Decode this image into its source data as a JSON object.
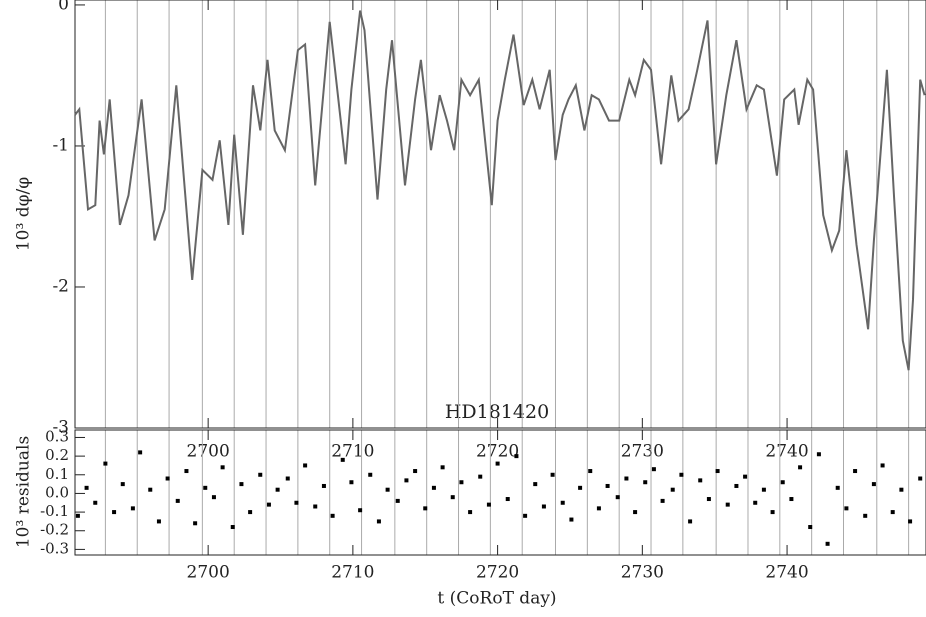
{
  "chart_data": [
    {
      "type": "line",
      "title": "HD181420",
      "ylabel": "10³ dφ/φ",
      "xlim": [
        2690.8,
        2749.6
      ],
      "ylim": [
        -3,
        0.035
      ],
      "xticks": [
        2700,
        2710,
        2720,
        2730,
        2740
      ],
      "yticks": [
        -3,
        -2,
        -1,
        0
      ],
      "vlines": [
        2692.9,
        2695.1,
        2697.3,
        2699.6,
        2701.8,
        2704.0,
        2706.2,
        2708.4,
        2710.6,
        2712.9,
        2715.1,
        2717.3,
        2719.5,
        2721.7,
        2724.0,
        2726.2,
        2728.4,
        2730.6,
        2732.8,
        2735.1,
        2737.3,
        2739.5,
        2741.7,
        2743.9,
        2746.2,
        2748.4
      ],
      "color": "#666666",
      "x": [
        2690.8,
        2691.1,
        2691.7,
        2692.2,
        2692.5,
        2692.8,
        2693.2,
        2693.9,
        2694.5,
        2695.4,
        2696.3,
        2697.0,
        2697.8,
        2698.9,
        2699.6,
        2700.3,
        2700.8,
        2701.4,
        2701.8,
        2702.4,
        2703.1,
        2703.6,
        2704.1,
        2704.6,
        2705.3,
        2706.2,
        2706.7,
        2707.4,
        2708.4,
        2709.5,
        2709.9,
        2710.5,
        2710.8,
        2711.7,
        2712.3,
        2712.7,
        2713.6,
        2714.3,
        2714.7,
        2715.4,
        2716.0,
        2716.5,
        2717.0,
        2717.5,
        2718.1,
        2718.7,
        2719.6,
        2720.0,
        2720.5,
        2721.1,
        2721.8,
        2722.4,
        2722.9,
        2723.6,
        2724.0,
        2724.5,
        2724.9,
        2725.4,
        2726.0,
        2726.5,
        2727.0,
        2727.7,
        2728.4,
        2729.1,
        2729.5,
        2730.1,
        2730.6,
        2731.3,
        2732.0,
        2732.5,
        2733.2,
        2733.8,
        2734.5,
        2735.1,
        2735.8,
        2736.5,
        2737.2,
        2737.9,
        2738.4,
        2739.3,
        2739.8,
        2740.5,
        2740.8,
        2741.4,
        2741.8,
        2742.5,
        2743.1,
        2743.6,
        2744.1,
        2744.8,
        2745.6,
        2746.0,
        2746.9,
        2747.4,
        2748.0,
        2748.4,
        2748.7,
        2749.2,
        2749.5
      ],
      "values": [
        -0.78,
        -0.74,
        -1.45,
        -1.42,
        -0.82,
        -1.06,
        -0.67,
        -1.56,
        -1.35,
        -0.67,
        -1.67,
        -1.45,
        -0.57,
        -1.95,
        -1.17,
        -1.24,
        -0.96,
        -1.56,
        -0.92,
        -1.63,
        -0.57,
        -0.89,
        -0.39,
        -0.89,
        -1.03,
        -0.32,
        -0.28,
        -1.28,
        -0.12,
        -1.13,
        -0.6,
        -0.04,
        -0.18,
        -1.38,
        -0.6,
        -0.25,
        -1.28,
        -0.67,
        -0.39,
        -1.03,
        -0.64,
        -0.82,
        -1.03,
        -0.53,
        -0.64,
        -0.53,
        -1.42,
        -0.82,
        -0.53,
        -0.21,
        -0.71,
        -0.53,
        -0.74,
        -0.46,
        -1.1,
        -0.78,
        -0.67,
        -0.57,
        -0.89,
        -0.64,
        -0.67,
        -0.82,
        -0.82,
        -0.53,
        -0.64,
        -0.39,
        -0.46,
        -1.13,
        -0.5,
        -0.82,
        -0.74,
        -0.46,
        -0.11,
        -1.13,
        -0.64,
        -0.25,
        -0.74,
        -0.57,
        -0.6,
        -1.21,
        -0.67,
        -0.6,
        -0.85,
        -0.53,
        -0.6,
        -1.49,
        -1.74,
        -1.6,
        -1.03,
        -1.7,
        -2.3,
        -1.67,
        -0.46,
        -1.38,
        -2.38,
        -2.59,
        -2.09,
        -0.53,
        -0.64
      ]
    },
    {
      "type": "scatter",
      "ylabel": "10³ residuals",
      "xlabel": "t (CoRoT day)",
      "xlim": [
        2690.8,
        2749.6
      ],
      "ylim": [
        -0.33,
        0.34
      ],
      "xticks": [
        2700,
        2710,
        2720,
        2730,
        2740
      ],
      "yticks": [
        -0.3,
        -0.2,
        -0.1,
        {
          "value": 0,
          "label": "0.0"
        },
        0.1,
        0.2,
        0.3
      ],
      "color": "#000000",
      "x": [
        2691.0,
        2691.6,
        2692.2,
        2692.9,
        2693.5,
        2694.1,
        2694.8,
        2695.3,
        2696.0,
        2696.6,
        2697.2,
        2697.9,
        2698.5,
        2699.1,
        2699.8,
        2700.4,
        2701.0,
        2701.7,
        2702.3,
        2702.9,
        2703.6,
        2704.2,
        2704.8,
        2705.5,
        2706.1,
        2706.7,
        2707.4,
        2708.0,
        2708.6,
        2709.3,
        2709.9,
        2710.5,
        2711.2,
        2711.8,
        2712.4,
        2713.1,
        2713.7,
        2714.3,
        2715.0,
        2715.6,
        2716.2,
        2716.9,
        2717.5,
        2718.1,
        2718.8,
        2719.4,
        2720.0,
        2720.7,
        2721.3,
        2721.9,
        2722.6,
        2723.2,
        2723.8,
        2724.5,
        2725.1,
        2725.7,
        2726.4,
        2727.0,
        2727.6,
        2728.3,
        2728.9,
        2729.5,
        2730.2,
        2730.8,
        2731.4,
        2732.1,
        2732.7,
        2733.3,
        2734.0,
        2734.6,
        2735.2,
        2735.9,
        2736.5,
        2737.1,
        2737.8,
        2738.4,
        2739.0,
        2739.7,
        2740.3,
        2740.9,
        2741.6,
        2742.2,
        2742.8,
        2743.5,
        2744.1,
        2744.7,
        2745.4,
        2746.0,
        2746.6,
        2747.3,
        2747.9,
        2748.5,
        2749.2
      ],
      "values": [
        -0.12,
        0.03,
        -0.05,
        0.16,
        -0.1,
        0.05,
        -0.08,
        0.22,
        0.02,
        -0.15,
        0.08,
        -0.04,
        0.12,
        -0.16,
        0.03,
        -0.02,
        0.14,
        -0.18,
        0.05,
        -0.1,
        0.1,
        -0.06,
        0.02,
        0.08,
        -0.05,
        0.15,
        -0.07,
        0.04,
        -0.12,
        0.18,
        0.06,
        -0.09,
        0.1,
        -0.15,
        0.02,
        -0.04,
        0.07,
        0.12,
        -0.08,
        0.03,
        0.14,
        -0.02,
        0.06,
        -0.1,
        0.09,
        -0.06,
        0.16,
        -0.03,
        0.2,
        -0.12,
        0.05,
        -0.07,
        0.1,
        -0.05,
        -0.14,
        0.03,
        0.12,
        -0.08,
        0.04,
        -0.02,
        0.08,
        -0.1,
        0.06,
        0.13,
        -0.04,
        0.02,
        0.1,
        -0.15,
        0.07,
        -0.03,
        0.12,
        -0.06,
        0.04,
        0.09,
        -0.05,
        0.02,
        -0.1,
        0.06,
        -0.03,
        0.14,
        -0.18,
        0.21,
        -0.27,
        0.03,
        -0.08,
        0.12,
        -0.12,
        0.05,
        0.15,
        -0.1,
        0.02,
        -0.15,
        0.08
      ]
    }
  ]
}
